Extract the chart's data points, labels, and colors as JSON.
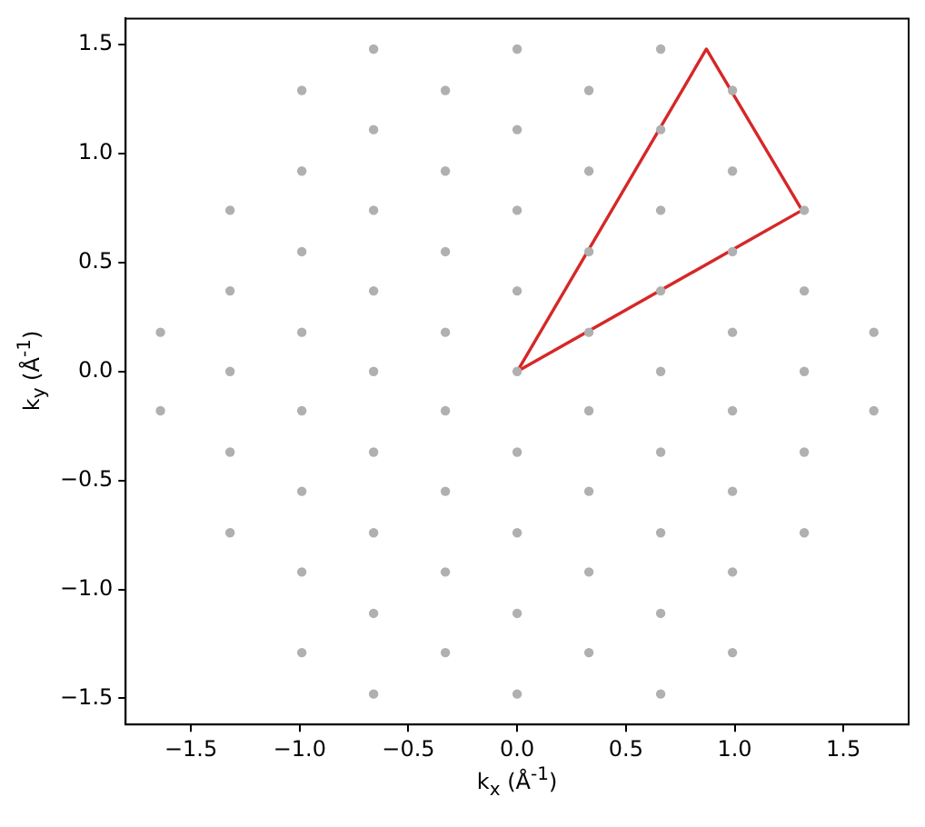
{
  "chart_data": {
    "type": "scatter",
    "xlabel": "k$_{x}$ (Å$^{-1}$)",
    "ylabel": "k$_{y}$ (Å$^{-1}$)",
    "xlim": [
      -1.8,
      1.8
    ],
    "ylim": [
      -1.62,
      1.62
    ],
    "xticks": [
      {
        "value": -1.5,
        "label": "−1.5"
      },
      {
        "value": -1,
        "label": "−1.0"
      },
      {
        "value": -0.5,
        "label": "−0.5"
      },
      {
        "value": 0,
        "label": "0.0"
      },
      0.5,
      {
        "value": 1,
        "label": "1.0"
      },
      1.5
    ],
    "yticks": [
      {
        "value": -1.5,
        "label": "−1.5"
      },
      {
        "value": -1,
        "label": "−1.0"
      },
      {
        "value": -0.5,
        "label": "−0.5"
      },
      {
        "value": 0,
        "label": "0.0"
      },
      0.5,
      {
        "value": 1,
        "label": "1.0"
      },
      1.5
    ],
    "grid": false,
    "legend": false,
    "series": [
      {
        "color": "#b0b0b0",
        "marker": "circle",
        "x": [
          -1.64,
          -1.64,
          -1.32,
          -1.32,
          -1.32,
          -1.32,
          -1.32,
          -0.99,
          -0.99,
          -0.99,
          -0.99,
          -0.99,
          -0.99,
          -0.99,
          -0.99,
          -0.66,
          -0.66,
          -0.66,
          -0.66,
          -0.66,
          -0.66,
          -0.66,
          -0.66,
          -0.66,
          -0.33,
          -0.33,
          -0.33,
          -0.33,
          -0.33,
          -0.33,
          -0.33,
          -0.33,
          0,
          0,
          0,
          0,
          0,
          0,
          0,
          0,
          0,
          0.33,
          0.33,
          0.33,
          0.33,
          0.33,
          0.33,
          0.33,
          0.33,
          0.66,
          0.66,
          0.66,
          0.66,
          0.66,
          0.66,
          0.66,
          0.66,
          0.66,
          0.99,
          0.99,
          0.99,
          0.99,
          0.99,
          0.99,
          0.99,
          0.99,
          1.32,
          1.32,
          1.32,
          1.32,
          1.32,
          1.64,
          1.64
        ],
        "values": [
          0.18,
          -0.18,
          0.74,
          0.37,
          0,
          -0.37,
          -0.74,
          1.29,
          0.92,
          0.55,
          0.18,
          -0.18,
          -0.55,
          -0.92,
          -1.29,
          1.48,
          1.11,
          0.74,
          0.37,
          0,
          -0.37,
          -0.74,
          -1.11,
          -1.48,
          1.29,
          0.92,
          0.55,
          0.18,
          -0.18,
          -0.55,
          -0.92,
          -1.29,
          1.48,
          1.11,
          0.74,
          0.37,
          0,
          -0.37,
          -0.74,
          -1.11,
          -1.48,
          1.29,
          0.92,
          0.55,
          0.18,
          -0.18,
          -0.55,
          -0.92,
          -1.29,
          1.48,
          1.11,
          0.74,
          0.37,
          0,
          -0.37,
          -0.74,
          -1.11,
          -1.48,
          1.29,
          0.92,
          0.55,
          0.18,
          -0.18,
          -0.55,
          -0.92,
          -1.29,
          0.74,
          0.37,
          0,
          -0.37,
          -0.74,
          0.18,
          -0.18
        ]
      },
      {
        "type": "line",
        "color": "#d62728",
        "marker": "none",
        "line_style": "solid",
        "x": [
          0,
          0.87,
          1.31
        ],
        "values": [
          0,
          1.48,
          0.74
        ]
      },
      {
        "type": "line",
        "color": "#d62728",
        "marker": "none",
        "line_style": "solid",
        "x": [
          0,
          1.31
        ],
        "values": [
          0,
          0.74
        ]
      }
    ]
  }
}
